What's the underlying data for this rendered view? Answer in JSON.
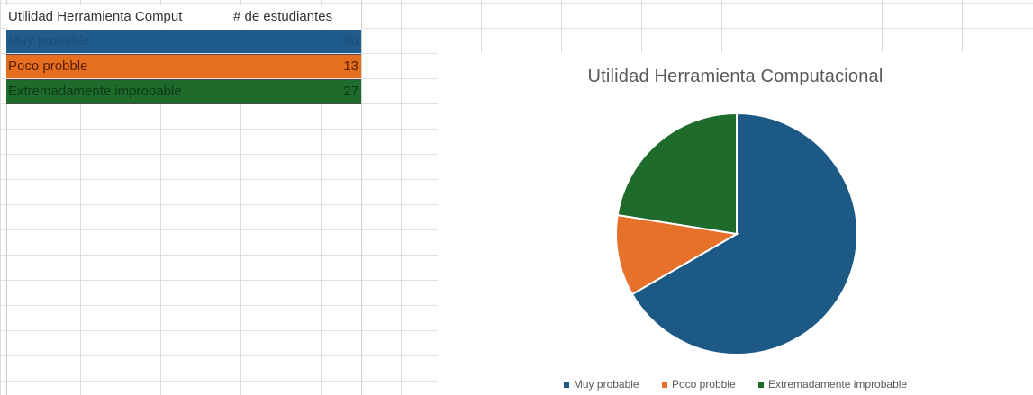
{
  "table": {
    "header": {
      "col1": "Utilidad Herramienta Comput",
      "col2": "# de estudiantes"
    },
    "rows": [
      {
        "label": "Muy probable",
        "value": "80",
        "fill": "#1f5c8b",
        "text": "#1c4f79"
      },
      {
        "label": "Poco probble",
        "value": "13",
        "fill": "#e56f1f",
        "text": "#5c2000"
      },
      {
        "label": "Extremadamente improbable",
        "value": "27",
        "fill": "#1e6b2c",
        "text": "#0c3a14"
      }
    ]
  },
  "chart_data": {
    "type": "pie",
    "title": "Utilidad Herramienta Computacional",
    "categories": [
      "Muy probable",
      "Poco probble",
      "Extremadamente improbable"
    ],
    "values": [
      80,
      13,
      27
    ],
    "colors": [
      "#1c5a85",
      "#e5712a",
      "#1e6b2c"
    ],
    "legend_position": "bottom"
  }
}
